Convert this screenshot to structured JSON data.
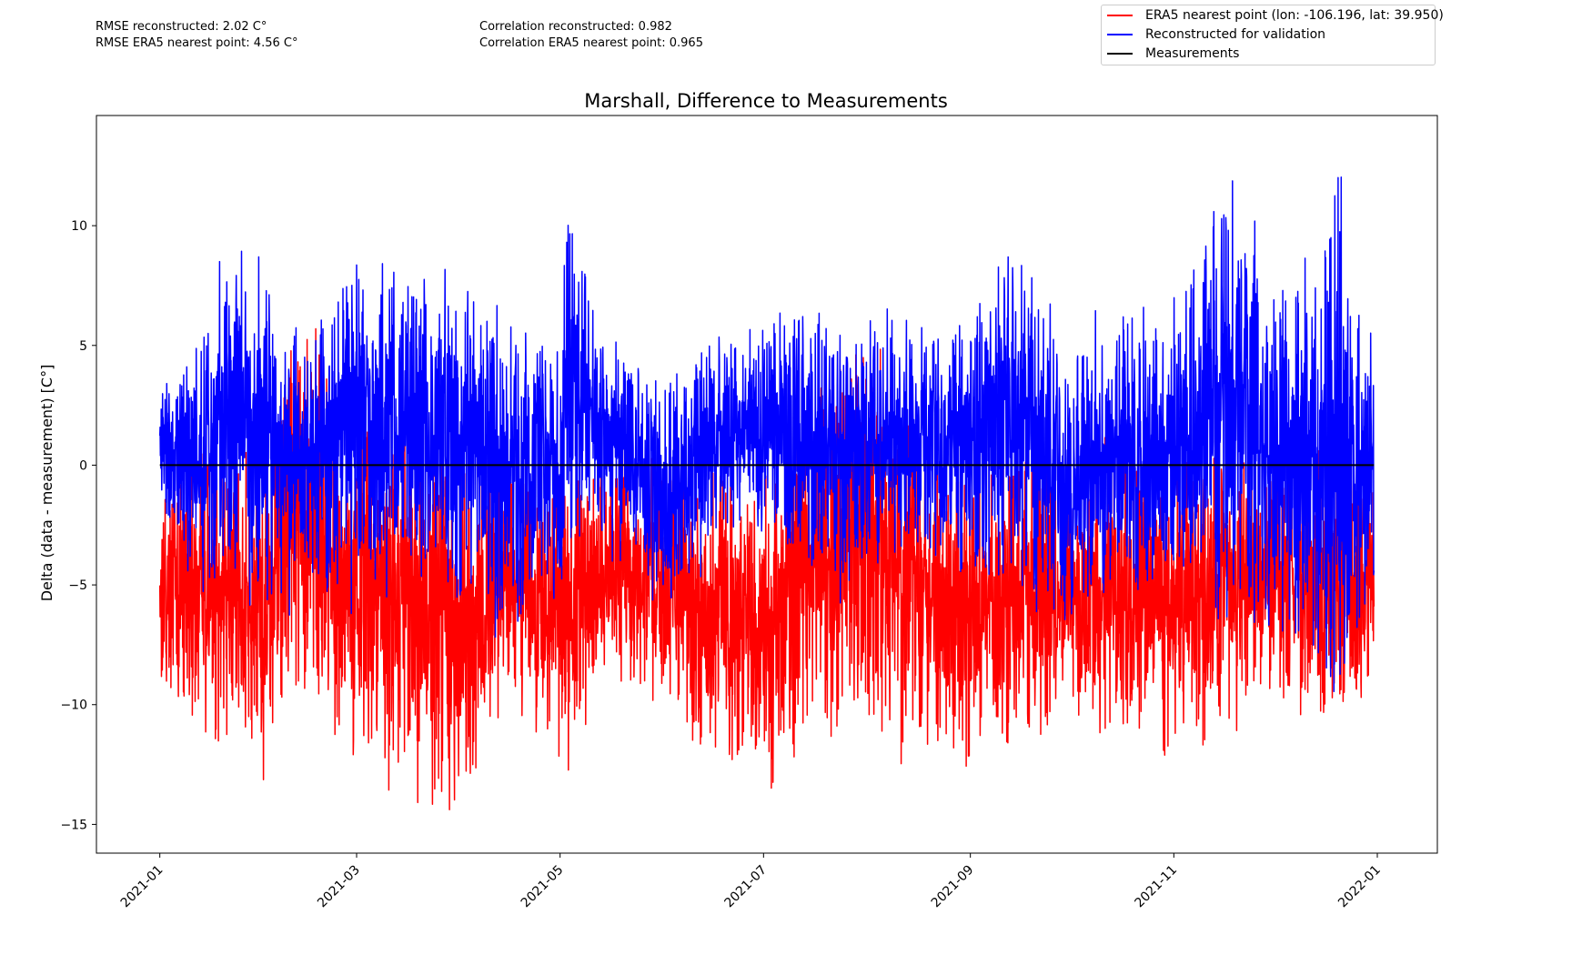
{
  "stats": {
    "rmse_reconstructed": "RMSE reconstructed: 2.02 C°",
    "rmse_era5": "RMSE ERA5 nearest point: 4.56 C°",
    "corr_reconstructed": "Correlation reconstructed: 0.982",
    "corr_era5": "Correlation ERA5 nearest point: 0.965"
  },
  "legend": [
    {
      "label": "ERA5 nearest point (lon: -106.196, lat: 39.950)",
      "color": "#ff0000"
    },
    {
      "label": "Reconstructed for validation",
      "color": "#0000ff"
    },
    {
      "label": "Measurements",
      "color": "#000000"
    }
  ],
  "chart_data": {
    "type": "line",
    "title": "Marshall, Difference to Measurements",
    "xlabel": "",
    "ylabel": "Delta (data - measurement) [C°]",
    "xlim": [
      "2020-12-13",
      "2022-01-19"
    ],
    "ylim": [
      -16.2,
      14.6
    ],
    "x_ticks": [
      "2021-01",
      "2021-03",
      "2021-05",
      "2021-07",
      "2021-09",
      "2021-11",
      "2022-01"
    ],
    "y_ticks": [
      -15,
      -10,
      -5,
      0,
      5,
      10
    ],
    "grid": false,
    "legend_position": "top-right, outside plot",
    "series": [
      {
        "name": "ERA5 nearest point (lon: -106.196, lat: 39.950)",
        "color": "#ff0000",
        "resolution": "daily envelope (max/min)",
        "x": [
          "2021-01-01",
          "2021-01-15",
          "2021-02-01",
          "2021-02-15",
          "2021-03-01",
          "2021-03-15",
          "2021-04-01",
          "2021-04-15",
          "2021-05-01",
          "2021-05-15",
          "2021-06-01",
          "2021-06-15",
          "2021-07-01",
          "2021-07-15",
          "2021-08-01",
          "2021-08-15",
          "2021-09-01",
          "2021-09-15",
          "2021-10-01",
          "2021-10-15",
          "2021-11-01",
          "2021-11-15",
          "2021-12-01",
          "2021-12-15",
          "2021-12-31"
        ],
        "upper": [
          -1.0,
          0.5,
          1.0,
          5.8,
          2.0,
          1.8,
          0.8,
          0.2,
          -0.5,
          -0.3,
          0.5,
          -0.5,
          -0.8,
          3.8,
          5.0,
          1.5,
          -0.5,
          0.8,
          -0.5,
          0.5,
          0.8,
          1.0,
          0.2,
          1.2,
          -1.0
        ],
        "lower": [
          -9.6,
          -11.5,
          -12.6,
          -9.5,
          -12.8,
          -12.3,
          -14.9,
          -9.5,
          -12.5,
          -8.5,
          -10.2,
          -12.2,
          -12.9,
          -11.2,
          -10.8,
          -12.0,
          -12.6,
          -11.5,
          -10.3,
          -11.6,
          -12.3,
          -10.8,
          -9.7,
          -10.9,
          -9.1
        ]
      },
      {
        "name": "Reconstructed for validation",
        "color": "#0000ff",
        "resolution": "daily envelope (max/min)",
        "x": [
          "2021-01-01",
          "2021-01-15",
          "2021-01-21",
          "2021-02-01",
          "2021-02-15",
          "2021-03-02",
          "2021-03-15",
          "2021-04-01",
          "2021-04-15",
          "2021-05-01",
          "2021-05-03",
          "2021-05-15",
          "2021-06-01",
          "2021-06-15",
          "2021-07-01",
          "2021-07-10",
          "2021-07-25",
          "2021-08-15",
          "2021-09-01",
          "2021-09-12",
          "2021-10-01",
          "2021-10-15",
          "2021-11-01",
          "2021-11-19",
          "2021-12-01",
          "2021-12-15",
          "2021-12-20",
          "2021-12-31"
        ],
        "upper": [
          3.4,
          5.9,
          10.0,
          7.5,
          5.5,
          9.0,
          8.0,
          7.3,
          6.0,
          5.2,
          11.2,
          5.0,
          3.5,
          5.5,
          5.3,
          7.3,
          5.5,
          6.4,
          6.2,
          9.3,
          5.2,
          6.0,
          6.1,
          13.1,
          7.9,
          8.4,
          12.2,
          4.0
        ],
        "lower": [
          -1.5,
          -5.6,
          -3.5,
          -6.2,
          -5.3,
          -5.5,
          -3.8,
          -5.7,
          -7.0,
          -5.0,
          -3.5,
          -3.0,
          -6.4,
          -3.5,
          -2.5,
          -4.0,
          -5.5,
          -3.0,
          -5.0,
          -4.5,
          -6.5,
          -4.8,
          -5.8,
          -6.0,
          -6.3,
          -8.5,
          -9.0,
          -5.5
        ]
      },
      {
        "name": "Measurements",
        "color": "#000000",
        "x": [
          "2021-01-01",
          "2021-12-31"
        ],
        "values": [
          0,
          0
        ]
      }
    ]
  }
}
